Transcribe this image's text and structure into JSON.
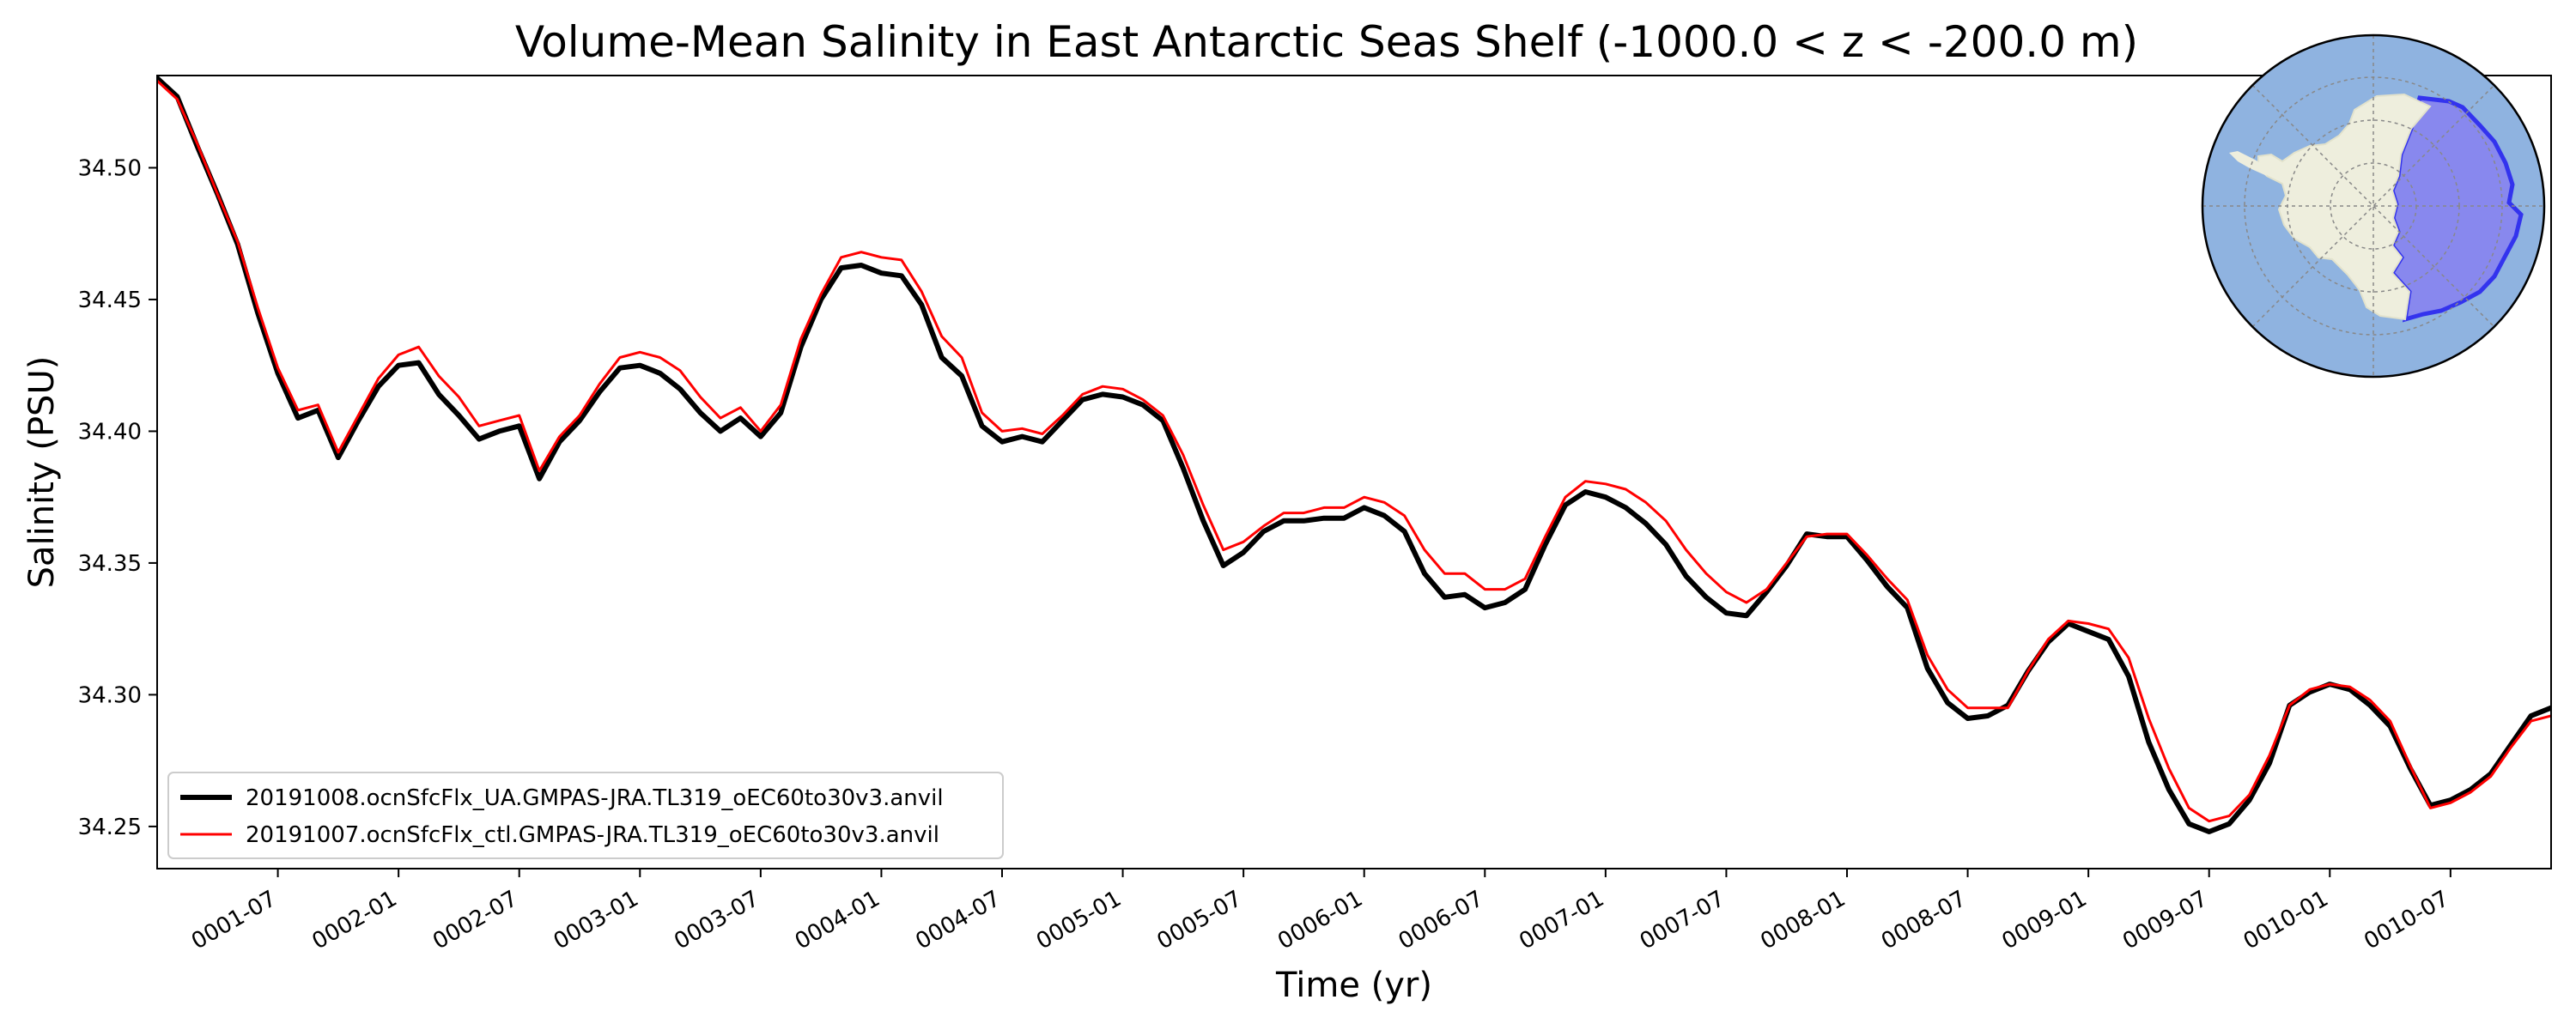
{
  "chart_data": {
    "type": "line",
    "title": "Volume-Mean Salinity in East Antarctic Seas Shelf (-1000.0 < z < -200.0 m)",
    "xlabel": "Time (yr)",
    "ylabel": "Salinity (PSU)",
    "x_unit": "month-start",
    "x_start": "0001-01",
    "x_step_months": 1,
    "xlim": [
      "0001-01",
      "0010-12"
    ],
    "ylim": [
      34.234,
      34.535
    ],
    "x_ticks": [
      "0001-07",
      "0002-01",
      "0002-07",
      "0003-01",
      "0003-07",
      "0004-01",
      "0004-07",
      "0005-01",
      "0005-07",
      "0006-01",
      "0006-07",
      "0007-01",
      "0007-07",
      "0008-01",
      "0008-07",
      "0009-01",
      "0009-07",
      "0010-01",
      "0010-07"
    ],
    "y_ticks": [
      "34.25",
      "34.30",
      "34.35",
      "34.40",
      "34.45",
      "34.50"
    ],
    "legend_position": "lower-left",
    "series": [
      {
        "name": "20191008.ocnSfcFlx_UA.GMPAS-JRA.TL319_oEC60to30v3.anvil",
        "color": "#000000",
        "values": [
          34.534,
          34.527,
          34.508,
          34.49,
          34.471,
          34.445,
          34.422,
          34.405,
          34.408,
          34.39,
          34.404,
          34.417,
          34.425,
          34.426,
          34.414,
          34.406,
          34.397,
          34.4,
          34.402,
          34.382,
          34.396,
          34.404,
          34.415,
          34.424,
          34.425,
          34.422,
          34.416,
          34.407,
          34.4,
          34.405,
          34.398,
          34.407,
          34.432,
          34.45,
          34.462,
          34.463,
          34.46,
          34.459,
          34.448,
          34.428,
          34.421,
          34.402,
          34.396,
          34.398,
          34.396,
          34.404,
          34.412,
          34.414,
          34.413,
          34.41,
          34.404,
          34.386,
          34.366,
          34.349,
          34.354,
          34.362,
          34.366,
          34.366,
          34.367,
          34.367,
          34.371,
          34.368,
          34.362,
          34.346,
          34.337,
          34.338,
          34.333,
          34.335,
          34.34,
          34.357,
          34.372,
          34.377,
          34.375,
          34.371,
          34.365,
          34.357,
          34.345,
          34.337,
          34.331,
          34.33,
          34.339,
          34.349,
          34.361,
          34.36,
          34.36,
          34.351,
          34.341,
          34.333,
          34.31,
          34.297,
          34.291,
          34.292,
          34.296,
          34.309,
          34.32,
          34.327,
          34.324,
          34.321,
          34.307,
          34.282,
          34.264,
          34.251,
          34.248,
          34.251,
          34.26,
          34.274,
          34.296,
          34.301,
          34.304,
          34.302,
          34.296,
          34.288,
          34.272,
          34.258,
          34.26,
          34.264,
          34.27,
          34.281,
          34.292,
          34.295
        ]
      },
      {
        "name": "20191007.ocnSfcFlx_ctl.GMPAS-JRA.TL319_oEC60to30v3.anvil",
        "color": "#ff0000",
        "values": [
          34.533,
          34.526,
          34.509,
          34.49,
          34.472,
          34.447,
          34.424,
          34.408,
          34.41,
          34.392,
          34.406,
          34.42,
          34.429,
          34.432,
          34.421,
          34.413,
          34.402,
          34.404,
          34.406,
          34.385,
          34.398,
          34.406,
          34.418,
          34.428,
          34.43,
          34.428,
          34.423,
          34.413,
          34.405,
          34.409,
          34.4,
          34.41,
          34.435,
          34.452,
          34.466,
          34.468,
          34.466,
          34.465,
          34.453,
          34.436,
          34.428,
          34.407,
          34.4,
          34.401,
          34.399,
          34.406,
          34.414,
          34.417,
          34.416,
          34.412,
          34.406,
          34.391,
          34.372,
          34.355,
          34.358,
          34.364,
          34.369,
          34.369,
          34.371,
          34.371,
          34.375,
          34.373,
          34.368,
          34.355,
          34.346,
          34.346,
          34.34,
          34.34,
          34.344,
          34.36,
          34.375,
          34.381,
          34.38,
          34.378,
          34.373,
          34.366,
          34.355,
          34.346,
          34.339,
          34.335,
          34.34,
          34.35,
          34.36,
          34.361,
          34.361,
          34.353,
          34.344,
          34.336,
          34.315,
          34.302,
          34.295,
          34.295,
          34.295,
          34.309,
          34.321,
          34.328,
          34.327,
          34.325,
          34.314,
          34.291,
          34.272,
          34.257,
          34.252,
          34.254,
          34.262,
          34.277,
          34.296,
          34.302,
          34.304,
          34.303,
          34.298,
          34.29,
          34.273,
          34.257,
          34.259,
          34.263,
          34.269,
          34.28,
          34.29,
          34.292
        ]
      }
    ]
  },
  "inset_map": {
    "land_color": "#eeeedd",
    "ocean_color": "#8fb3e0",
    "region_fill": "#8888ee",
    "region_edge": "#3333ee"
  }
}
